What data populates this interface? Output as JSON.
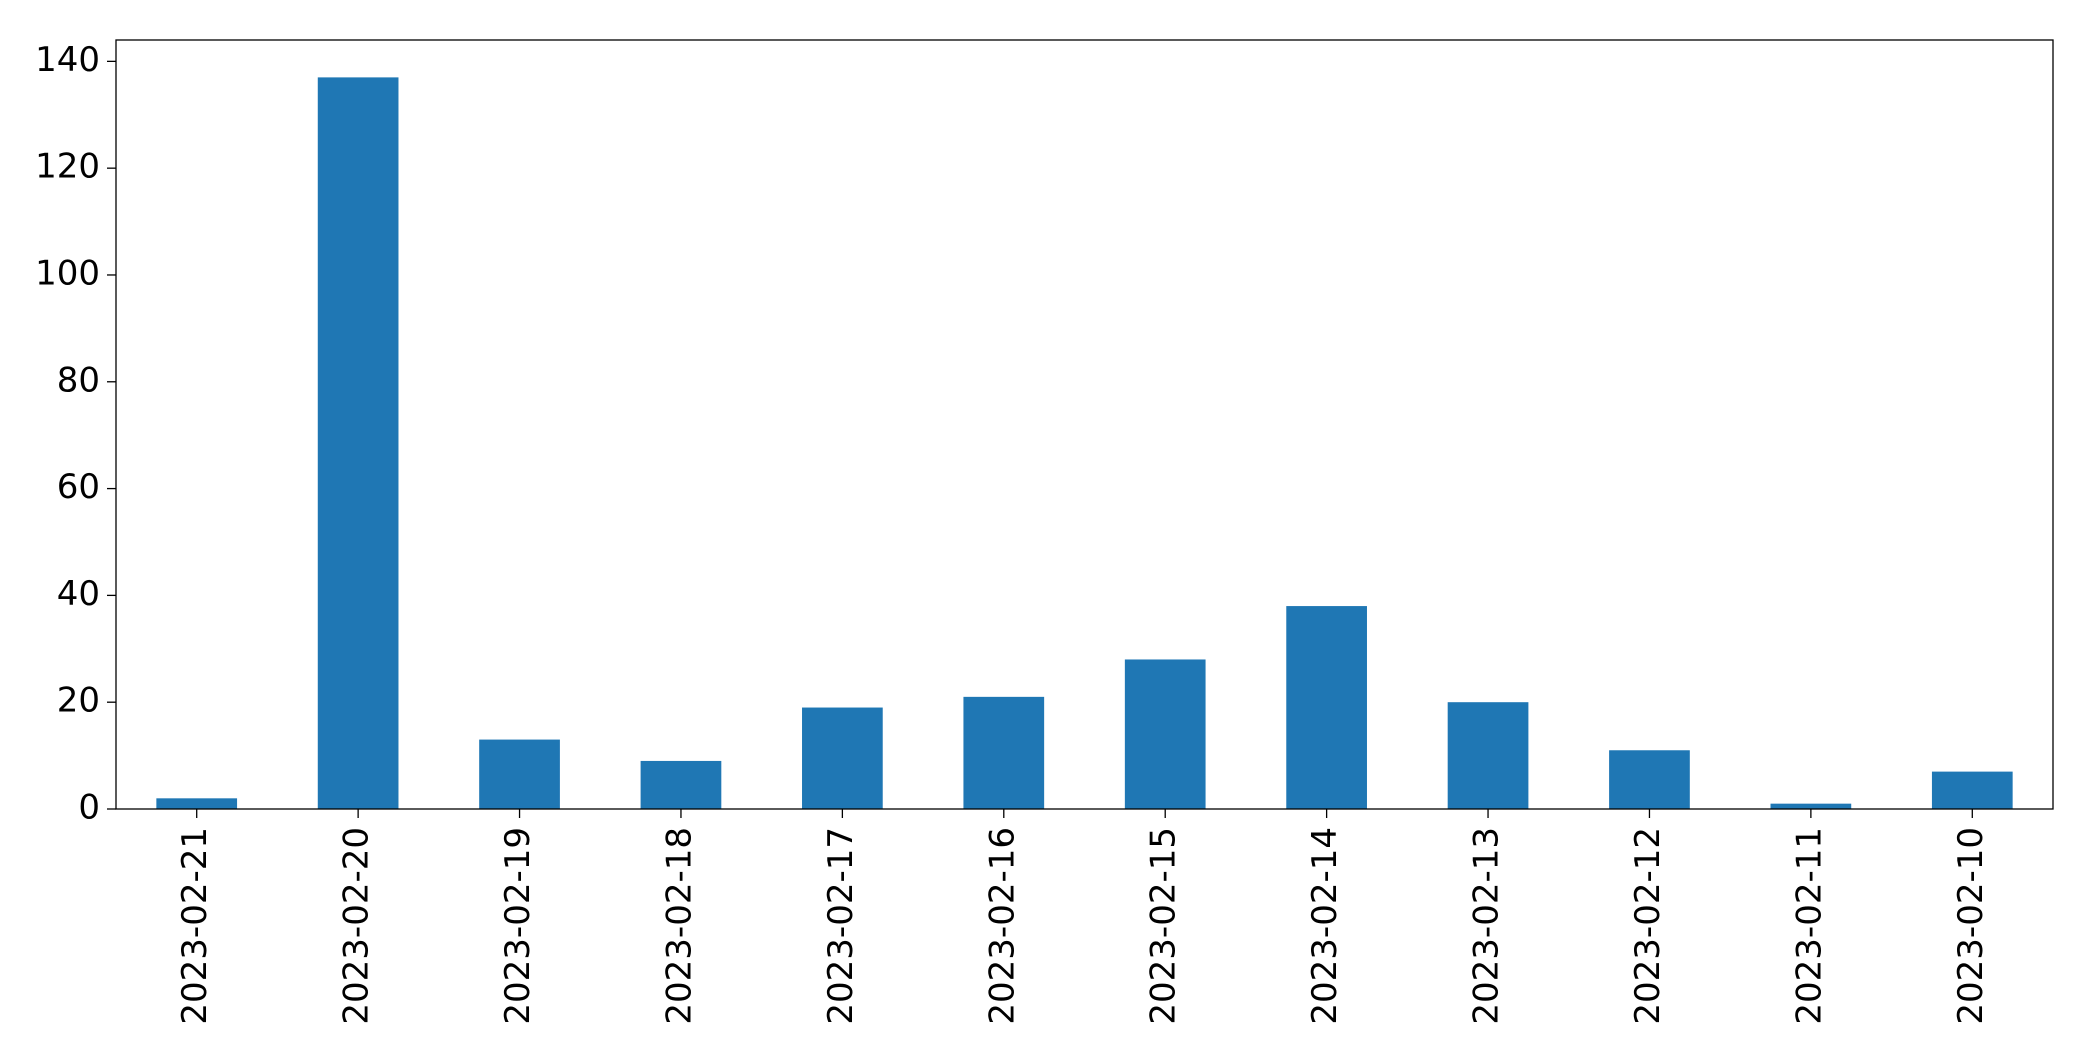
{
  "chart_data": {
    "type": "bar",
    "categories": [
      "2023-02-21",
      "2023-02-20",
      "2023-02-19",
      "2023-02-18",
      "2023-02-17",
      "2023-02-16",
      "2023-02-15",
      "2023-02-14",
      "2023-02-13",
      "2023-02-12",
      "2023-02-11",
      "2023-02-10"
    ],
    "values": [
      2,
      137,
      13,
      9,
      19,
      21,
      28,
      38,
      20,
      11,
      1,
      7
    ],
    "color": "#1f77b4",
    "ylim": [
      0,
      144
    ],
    "yticks": [
      0,
      20,
      40,
      60,
      80,
      100,
      120,
      140
    ],
    "grid": false
  }
}
